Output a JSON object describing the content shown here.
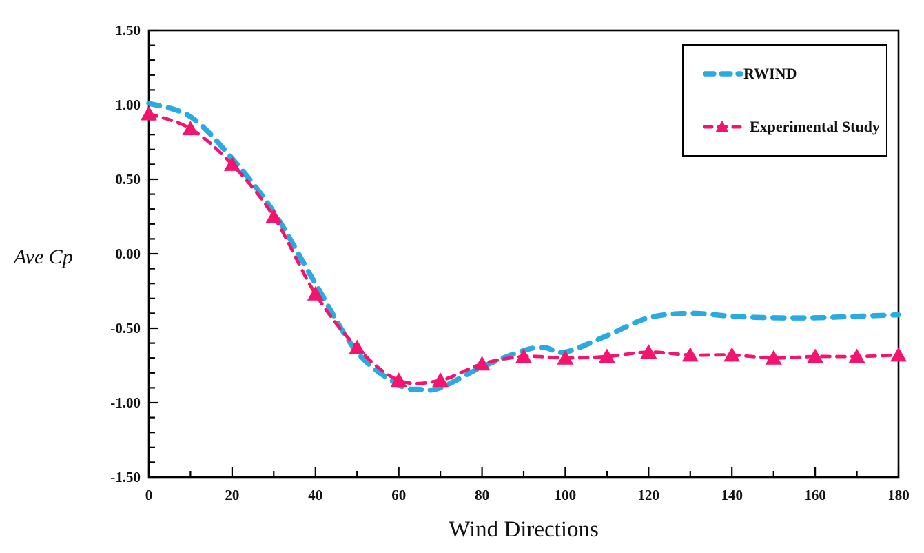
{
  "chart_data": {
    "type": "line",
    "title": "",
    "xlabel": "Wind Directions",
    "ylabel": "Ave Cp",
    "xlim": [
      0,
      180
    ],
    "ylim": [
      -1.5,
      1.5
    ],
    "x_tick_labels": [
      "0",
      "20",
      "40",
      "60",
      "80",
      "100",
      "120",
      "140",
      "160",
      "180"
    ],
    "y_tick_labels": [
      "1.50",
      "1.00",
      "0.50",
      "0.00",
      "-0.50",
      "-1.00",
      "-1.50"
    ],
    "x_minor_step": 10,
    "y_minor_step": 0.1,
    "grid": false,
    "legend_position": "top-right",
    "axis_color": "#000000",
    "series": [
      {
        "name": "RWIND",
        "color": "#29ABE2",
        "line_style": "dashed",
        "marker": "none",
        "x": [
          0,
          10,
          20,
          30,
          40,
          50,
          60,
          65,
          70,
          80,
          90,
          95,
          100,
          110,
          120,
          130,
          140,
          150,
          160,
          170,
          180
        ],
        "values": [
          1.01,
          0.92,
          0.64,
          0.28,
          -0.2,
          -0.66,
          -0.88,
          -0.91,
          -0.9,
          -0.76,
          -0.65,
          -0.63,
          -0.66,
          -0.55,
          -0.43,
          -0.4,
          -0.42,
          -0.43,
          -0.43,
          -0.42,
          -0.41
        ]
      },
      {
        "name": "Experimental Study",
        "color": "#F3146E",
        "line_style": "dashed",
        "marker": "triangle",
        "x": [
          0,
          10,
          20,
          30,
          40,
          50,
          60,
          70,
          80,
          90,
          100,
          110,
          120,
          130,
          140,
          150,
          160,
          170,
          180
        ],
        "values": [
          0.94,
          0.84,
          0.6,
          0.25,
          -0.27,
          -0.63,
          -0.85,
          -0.85,
          -0.74,
          -0.69,
          -0.7,
          -0.69,
          -0.66,
          -0.68,
          -0.68,
          -0.7,
          -0.69,
          -0.69,
          -0.68
        ]
      }
    ]
  }
}
